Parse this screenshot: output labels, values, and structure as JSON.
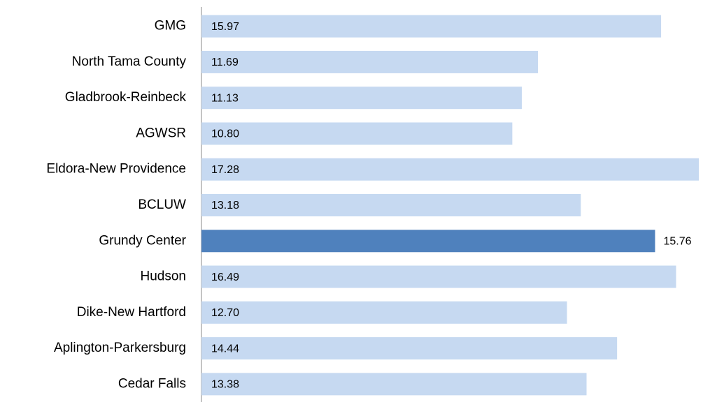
{
  "chart_data": {
    "type": "hbar",
    "categories": [
      "GMG",
      "North Tama County",
      "Gladbrook-Reinbeck",
      "AGWSR",
      "Eldora-New Providence",
      "BCLUW",
      "Grundy Center",
      "Hudson",
      "Dike-New Hartford",
      "Aplington-Parkersburg",
      "Cedar Falls"
    ],
    "values": [
      15.97,
      11.69,
      11.13,
      10.8,
      17.28,
      13.18,
      15.76,
      16.49,
      12.7,
      14.44,
      13.38
    ],
    "value_labels": [
      "15.97",
      "11.69",
      "11.13",
      "10.80",
      "17.28",
      "13.18",
      "15.76",
      "16.49",
      "12.70",
      "14.44",
      "13.38"
    ],
    "colors": [
      "#c6d9f1",
      "#c6d9f1",
      "#c6d9f1",
      "#c6d9f1",
      "#c6d9f1",
      "#c6d9f1",
      "#4f81bd",
      "#c6d9f1",
      "#c6d9f1",
      "#c6d9f1",
      "#c6d9f1"
    ]
  }
}
